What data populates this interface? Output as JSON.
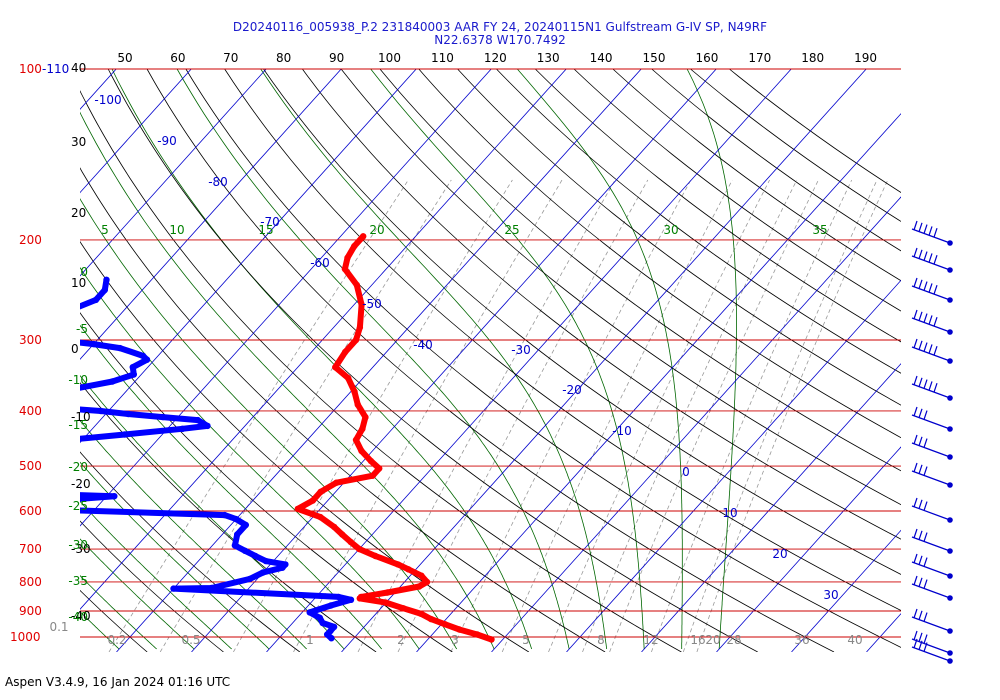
{
  "title": {
    "line1": "D20240116_005938_P.2 231840003 AAR FY 24, 20240115N1 Gulfstream G-IV SP, N49RF",
    "line2": "N22.6378 W170.7492"
  },
  "footer": "Aspen V3.4.9, 16 Jan 2024  01:16 UTC",
  "colors": {
    "temperature": "#ff0000",
    "dewpoint": "#0000ff",
    "isobar": "#cc0000",
    "isotherm": "#0000cc",
    "mixing_ratio": "#999999",
    "dry_adiabat": "#000000",
    "moist_adiabat": "#006600",
    "theta_label": "#008000",
    "grey_label": "#888888"
  },
  "chart_data": {
    "type": "skew-t",
    "isobar_labels": [
      {
        "p": 100,
        "label": "100"
      },
      {
        "p": 200,
        "label": "200"
      },
      {
        "p": 300,
        "label": "300"
      },
      {
        "p": 400,
        "label": "400"
      },
      {
        "p": 500,
        "label": "500"
      },
      {
        "p": 600,
        "label": "600"
      },
      {
        "p": 700,
        "label": "700"
      },
      {
        "p": 800,
        "label": "800"
      },
      {
        "p": 900,
        "label": "900"
      },
      {
        "p": 1000,
        "label": "1000"
      }
    ],
    "top_isobar_extra": "-110",
    "left_temp_labels": [
      "40",
      "30",
      "20",
      "10",
      "0",
      "-10",
      "-20",
      "-30",
      "-40"
    ],
    "top_scale": [
      "50",
      "60",
      "70",
      "80",
      "90",
      "100",
      "110",
      "120",
      "130",
      "140",
      "150",
      "160",
      "170",
      "180",
      "190"
    ],
    "isotherm_labels": [
      "-100",
      "-90",
      "-80",
      "-70",
      "-60",
      "-50",
      "-40",
      "-30",
      "-20",
      "-10",
      "0",
      "10",
      "20",
      "30"
    ],
    "theta_top_labels": [
      "5",
      "10",
      "15",
      "20",
      "25",
      "30",
      "35"
    ],
    "theta_left_labels": [
      "0",
      "-5",
      "-10",
      "-15",
      "-20",
      "-25",
      "-30",
      "-35",
      "-40"
    ],
    "mixing_ratio_labels": [
      "0.1",
      "0.2",
      "0.5",
      "1",
      "2",
      "3",
      "5",
      "8",
      "12",
      "16",
      "20",
      "28",
      "36",
      "40"
    ],
    "temperature_profile": [
      {
        "p": 197,
        "t": -57
      },
      {
        "p": 205,
        "t": -57
      },
      {
        "p": 215,
        "t": -56.5
      },
      {
        "p": 225,
        "t": -55.5
      },
      {
        "p": 240,
        "t": -52
      },
      {
        "p": 260,
        "t": -49
      },
      {
        "p": 285,
        "t": -46.5
      },
      {
        "p": 300,
        "t": -45.5
      },
      {
        "p": 315,
        "t": -45.5
      },
      {
        "p": 335,
        "t": -45
      },
      {
        "p": 350,
        "t": -42
      },
      {
        "p": 370,
        "t": -39.5
      },
      {
        "p": 390,
        "t": -37.5
      },
      {
        "p": 410,
        "t": -35
      },
      {
        "p": 430,
        "t": -34
      },
      {
        "p": 450,
        "t": -33.5
      },
      {
        "p": 470,
        "t": -31.5
      },
      {
        "p": 490,
        "t": -29
      },
      {
        "p": 505,
        "t": -27
      },
      {
        "p": 520,
        "t": -27
      },
      {
        "p": 535,
        "t": -31
      },
      {
        "p": 555,
        "t": -32
      },
      {
        "p": 575,
        "t": -32
      },
      {
        "p": 595,
        "t": -33
      },
      {
        "p": 615,
        "t": -29
      },
      {
        "p": 640,
        "t": -26
      },
      {
        "p": 660,
        "t": -24
      },
      {
        "p": 680,
        "t": -22
      },
      {
        "p": 700,
        "t": -20
      },
      {
        "p": 720,
        "t": -17
      },
      {
        "p": 745,
        "t": -13
      },
      {
        "p": 760,
        "t": -11
      },
      {
        "p": 780,
        "t": -8.5
      },
      {
        "p": 800,
        "t": -7
      },
      {
        "p": 815,
        "t": -7.5
      },
      {
        "p": 835,
        "t": -11
      },
      {
        "p": 850,
        "t": -14
      },
      {
        "p": 855,
        "t": -14
      },
      {
        "p": 870,
        "t": -10
      },
      {
        "p": 890,
        "t": -7
      },
      {
        "p": 910,
        "t": -4
      },
      {
        "p": 930,
        "t": -2
      },
      {
        "p": 950,
        "t": 0.5
      },
      {
        "p": 970,
        "t": 3
      },
      {
        "p": 990,
        "t": 6
      },
      {
        "p": 1010,
        "t": 8.5
      }
    ],
    "dewpoint_profile": [
      {
        "p": 235,
        "td": -86
      },
      {
        "p": 245,
        "td": -85
      },
      {
        "p": 255,
        "td": -85
      },
      {
        "p": 265,
        "td": -87
      },
      {
        "p": 270,
        "td": -89
      },
      {
        "p": 280,
        "td": -87
      },
      {
        "p": 290,
        "td": -87
      },
      {
        "p": 300,
        "td": -85.5
      },
      {
        "p": 305,
        "td": -80
      },
      {
        "p": 310,
        "td": -76
      },
      {
        "p": 320,
        "td": -72
      },
      {
        "p": 325,
        "td": -71
      },
      {
        "p": 335,
        "td": -72
      },
      {
        "p": 345,
        "td": -71
      },
      {
        "p": 355,
        "td": -73
      },
      {
        "p": 365,
        "td": -77
      },
      {
        "p": 375,
        "td": -77
      },
      {
        "p": 380,
        "td": -81
      },
      {
        "p": 385,
        "td": -84
      },
      {
        "p": 390,
        "td": -84
      },
      {
        "p": 395,
        "td": -77
      },
      {
        "p": 400,
        "td": -71
      },
      {
        "p": 405,
        "td": -67
      },
      {
        "p": 410,
        "td": -62
      },
      {
        "p": 415,
        "td": -57
      },
      {
        "p": 425,
        "td": -55
      },
      {
        "p": 430,
        "td": -58
      },
      {
        "p": 440,
        "td": -65
      },
      {
        "p": 450,
        "td": -72
      },
      {
        "p": 460,
        "td": -75
      },
      {
        "p": 470,
        "td": -73
      },
      {
        "p": 480,
        "td": -69
      },
      {
        "p": 490,
        "td": -71
      },
      {
        "p": 500,
        "td": -74
      },
      {
        "p": 510,
        "td": -72
      },
      {
        "p": 520,
        "td": -67
      },
      {
        "p": 530,
        "td": -66
      },
      {
        "p": 545,
        "td": -65
      },
      {
        "p": 560,
        "td": -69
      },
      {
        "p": 565,
        "td": -59
      },
      {
        "p": 575,
        "td": -66
      },
      {
        "p": 585,
        "td": -69
      },
      {
        "p": 595,
        "td": -69
      },
      {
        "p": 610,
        "td": -42
      },
      {
        "p": 620,
        "td": -40
      },
      {
        "p": 635,
        "td": -38
      },
      {
        "p": 660,
        "td": -38
      },
      {
        "p": 690,
        "td": -37
      },
      {
        "p": 705,
        "td": -35
      },
      {
        "p": 720,
        "td": -33
      },
      {
        "p": 735,
        "td": -31
      },
      {
        "p": 745,
        "td": -28
      },
      {
        "p": 755,
        "td": -28
      },
      {
        "p": 770,
        "td": -30
      },
      {
        "p": 790,
        "td": -31
      },
      {
        "p": 820,
        "td": -35
      },
      {
        "p": 822,
        "td": -40
      },
      {
        "p": 850,
        "td": -17
      },
      {
        "p": 860,
        "td": -15
      },
      {
        "p": 880,
        "td": -17
      },
      {
        "p": 905,
        "td": -19
      },
      {
        "p": 925,
        "td": -17
      },
      {
        "p": 945,
        "td": -16
      },
      {
        "p": 960,
        "td": -14
      },
      {
        "p": 975,
        "td": -14
      },
      {
        "p": 990,
        "td": -14
      },
      {
        "p": 1005,
        "td": -13
      }
    ],
    "wind_barb_count": 16
  }
}
